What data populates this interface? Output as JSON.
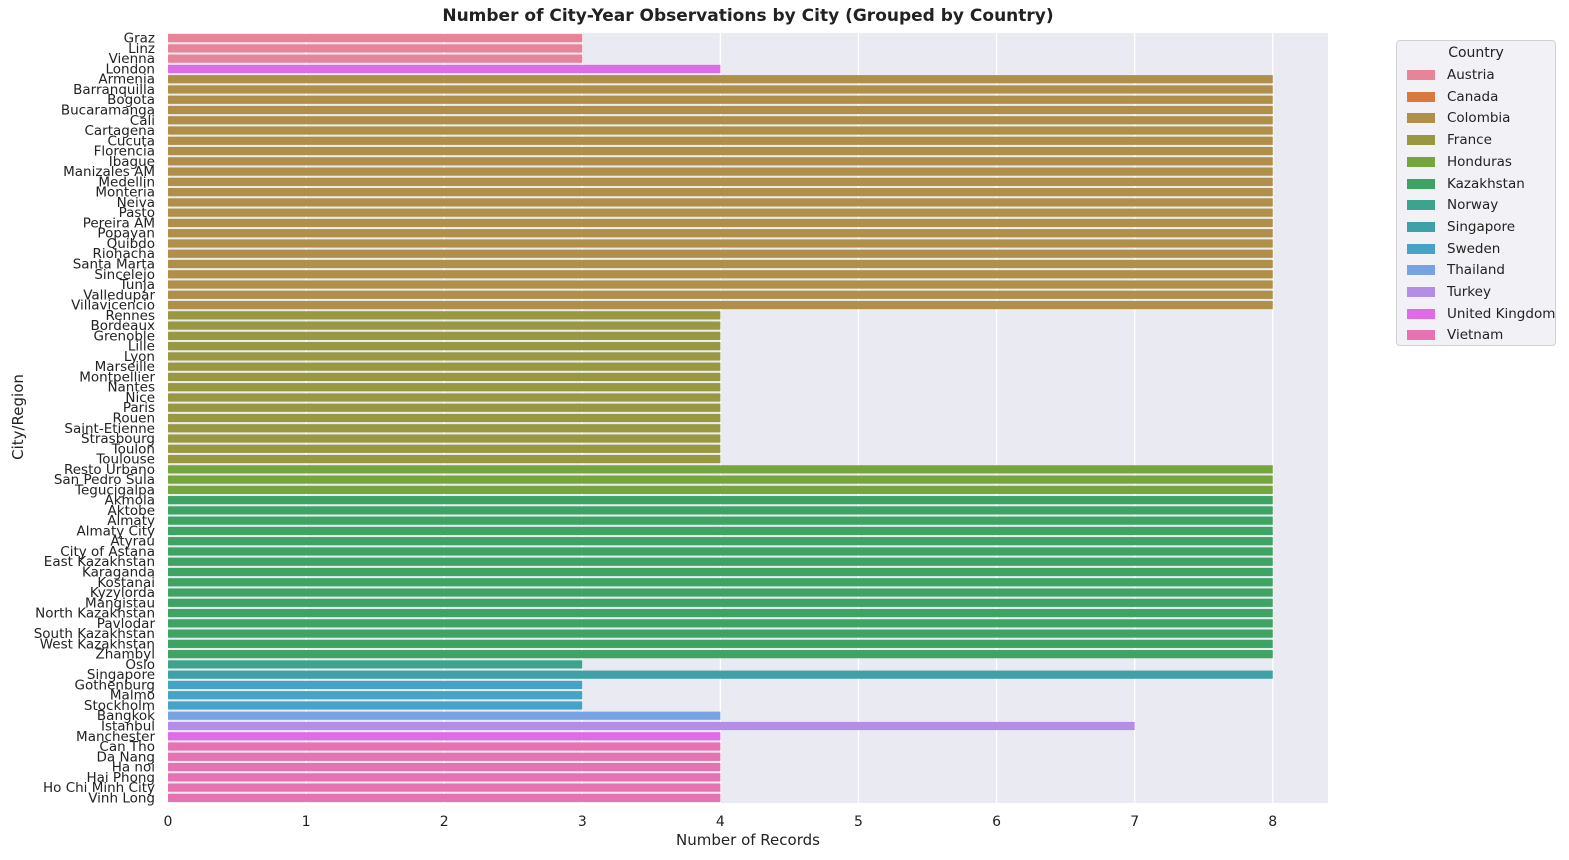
{
  "chart_data": {
    "type": "bar",
    "orientation": "horizontal",
    "title": "Number of City-Year Observations by City (Grouped by Country)",
    "xlabel": "Number of Records",
    "ylabel": "City/Region",
    "xlim": [
      0,
      8.4
    ],
    "xticks": [
      "0",
      "1",
      "2",
      "3",
      "4",
      "5",
      "6",
      "7",
      "8"
    ],
    "grid": true,
    "legend_title": "Country",
    "legend_position": "outside right",
    "countries": [
      {
        "name": "Austria",
        "color": "#e8849a"
      },
      {
        "name": "Canada",
        "color": "#d9783f"
      },
      {
        "name": "Colombia",
        "color": "#b08f48"
      },
      {
        "name": "France",
        "color": "#979840"
      },
      {
        "name": "Honduras",
        "color": "#77a53d"
      },
      {
        "name": "Kazakhstan",
        "color": "#3ea464"
      },
      {
        "name": "Norway",
        "color": "#3da38c"
      },
      {
        "name": "Singapore",
        "color": "#40a0a7"
      },
      {
        "name": "Sweden",
        "color": "#44a3c7"
      },
      {
        "name": "Thailand",
        "color": "#78a3e3"
      },
      {
        "name": "Turkey",
        "color": "#b48de6"
      },
      {
        "name": "United Kingdom",
        "color": "#e06be6"
      },
      {
        "name": "Vietnam",
        "color": "#e672b1"
      }
    ],
    "bars": [
      {
        "city": "Graz",
        "country": "Austria",
        "value": 3
      },
      {
        "city": "Linz",
        "country": "Austria",
        "value": 3
      },
      {
        "city": "Vienna",
        "country": "Austria",
        "value": 3
      },
      {
        "city": "London",
        "country": "United Kingdom",
        "value": 4
      },
      {
        "city": "Armenia",
        "country": "Colombia",
        "value": 8
      },
      {
        "city": "Barranquilla",
        "country": "Colombia",
        "value": 8
      },
      {
        "city": "Bogota",
        "country": "Colombia",
        "value": 8
      },
      {
        "city": "Bucaramanga",
        "country": "Colombia",
        "value": 8
      },
      {
        "city": "Cali",
        "country": "Colombia",
        "value": 8
      },
      {
        "city": "Cartagena",
        "country": "Colombia",
        "value": 8
      },
      {
        "city": "Cucuta",
        "country": "Colombia",
        "value": 8
      },
      {
        "city": "Florencia",
        "country": "Colombia",
        "value": 8
      },
      {
        "city": "Ibague",
        "country": "Colombia",
        "value": 8
      },
      {
        "city": "Manizales AM",
        "country": "Colombia",
        "value": 8
      },
      {
        "city": "Medellin",
        "country": "Colombia",
        "value": 8
      },
      {
        "city": "Monteria",
        "country": "Colombia",
        "value": 8
      },
      {
        "city": "Neiva",
        "country": "Colombia",
        "value": 8
      },
      {
        "city": "Pasto",
        "country": "Colombia",
        "value": 8
      },
      {
        "city": "Pereira AM",
        "country": "Colombia",
        "value": 8
      },
      {
        "city": "Popayan",
        "country": "Colombia",
        "value": 8
      },
      {
        "city": "Quibdo",
        "country": "Colombia",
        "value": 8
      },
      {
        "city": "Riohacha",
        "country": "Colombia",
        "value": 8
      },
      {
        "city": "Santa Marta",
        "country": "Colombia",
        "value": 8
      },
      {
        "city": "Sincelejo",
        "country": "Colombia",
        "value": 8
      },
      {
        "city": "Tunja",
        "country": "Colombia",
        "value": 8
      },
      {
        "city": "Valledupar",
        "country": "Colombia",
        "value": 8
      },
      {
        "city": "Villavicencio",
        "country": "Colombia",
        "value": 8
      },
      {
        "city": "Rennes",
        "country": "France",
        "value": 4
      },
      {
        "city": "Bordeaux",
        "country": "France",
        "value": 4
      },
      {
        "city": "Grenoble",
        "country": "France",
        "value": 4
      },
      {
        "city": "Lille",
        "country": "France",
        "value": 4
      },
      {
        "city": "Lyon",
        "country": "France",
        "value": 4
      },
      {
        "city": "Marseille",
        "country": "France",
        "value": 4
      },
      {
        "city": "Montpellier",
        "country": "France",
        "value": 4
      },
      {
        "city": "Nantes",
        "country": "France",
        "value": 4
      },
      {
        "city": "Nice",
        "country": "France",
        "value": 4
      },
      {
        "city": "Paris",
        "country": "France",
        "value": 4
      },
      {
        "city": "Rouen",
        "country": "France",
        "value": 4
      },
      {
        "city": "Saint-Etienne",
        "country": "France",
        "value": 4
      },
      {
        "city": "Strasbourg",
        "country": "France",
        "value": 4
      },
      {
        "city": "Toulon",
        "country": "France",
        "value": 4
      },
      {
        "city": "Toulouse",
        "country": "France",
        "value": 4
      },
      {
        "city": "Resto Urbano",
        "country": "Honduras",
        "value": 8
      },
      {
        "city": "San Pedro Sula",
        "country": "Honduras",
        "value": 8
      },
      {
        "city": "Tegucigalpa",
        "country": "Honduras",
        "value": 8
      },
      {
        "city": "Akmola",
        "country": "Kazakhstan",
        "value": 8
      },
      {
        "city": "Aktobe",
        "country": "Kazakhstan",
        "value": 8
      },
      {
        "city": "Almaty",
        "country": "Kazakhstan",
        "value": 8
      },
      {
        "city": "Almaty City",
        "country": "Kazakhstan",
        "value": 8
      },
      {
        "city": "Atyrau",
        "country": "Kazakhstan",
        "value": 8
      },
      {
        "city": "City of Astana",
        "country": "Kazakhstan",
        "value": 8
      },
      {
        "city": "East Kazakhstan",
        "country": "Kazakhstan",
        "value": 8
      },
      {
        "city": "Karaganda",
        "country": "Kazakhstan",
        "value": 8
      },
      {
        "city": "Kostanai",
        "country": "Kazakhstan",
        "value": 8
      },
      {
        "city": "Kyzylorda",
        "country": "Kazakhstan",
        "value": 8
      },
      {
        "city": "Mangistau",
        "country": "Kazakhstan",
        "value": 8
      },
      {
        "city": "North Kazakhstan",
        "country": "Kazakhstan",
        "value": 8
      },
      {
        "city": "Pavlodar",
        "country": "Kazakhstan",
        "value": 8
      },
      {
        "city": "South Kazakhstan",
        "country": "Kazakhstan",
        "value": 8
      },
      {
        "city": "West Kazakhstan",
        "country": "Kazakhstan",
        "value": 8
      },
      {
        "city": "Zhambyl",
        "country": "Kazakhstan",
        "value": 8
      },
      {
        "city": "Oslo",
        "country": "Norway",
        "value": 3
      },
      {
        "city": "Singapore",
        "country": "Singapore",
        "value": 8
      },
      {
        "city": "Gothenburg",
        "country": "Sweden",
        "value": 3
      },
      {
        "city": "Malmo",
        "country": "Sweden",
        "value": 3
      },
      {
        "city": "Stockholm",
        "country": "Sweden",
        "value": 3
      },
      {
        "city": "Bangkok",
        "country": "Thailand",
        "value": 4
      },
      {
        "city": "Istanbul",
        "country": "Turkey",
        "value": 7
      },
      {
        "city": "Manchester",
        "country": "United Kingdom",
        "value": 4
      },
      {
        "city": "Can Tho",
        "country": "Vietnam",
        "value": 4
      },
      {
        "city": "Da Nang",
        "country": "Vietnam",
        "value": 4
      },
      {
        "city": "Ha noi",
        "country": "Vietnam",
        "value": 4
      },
      {
        "city": "Hai Phong",
        "country": "Vietnam",
        "value": 4
      },
      {
        "city": "Ho Chi Minh City",
        "country": "Vietnam",
        "value": 4
      },
      {
        "city": "Vinh Long",
        "country": "Vietnam",
        "value": 4
      }
    ]
  }
}
